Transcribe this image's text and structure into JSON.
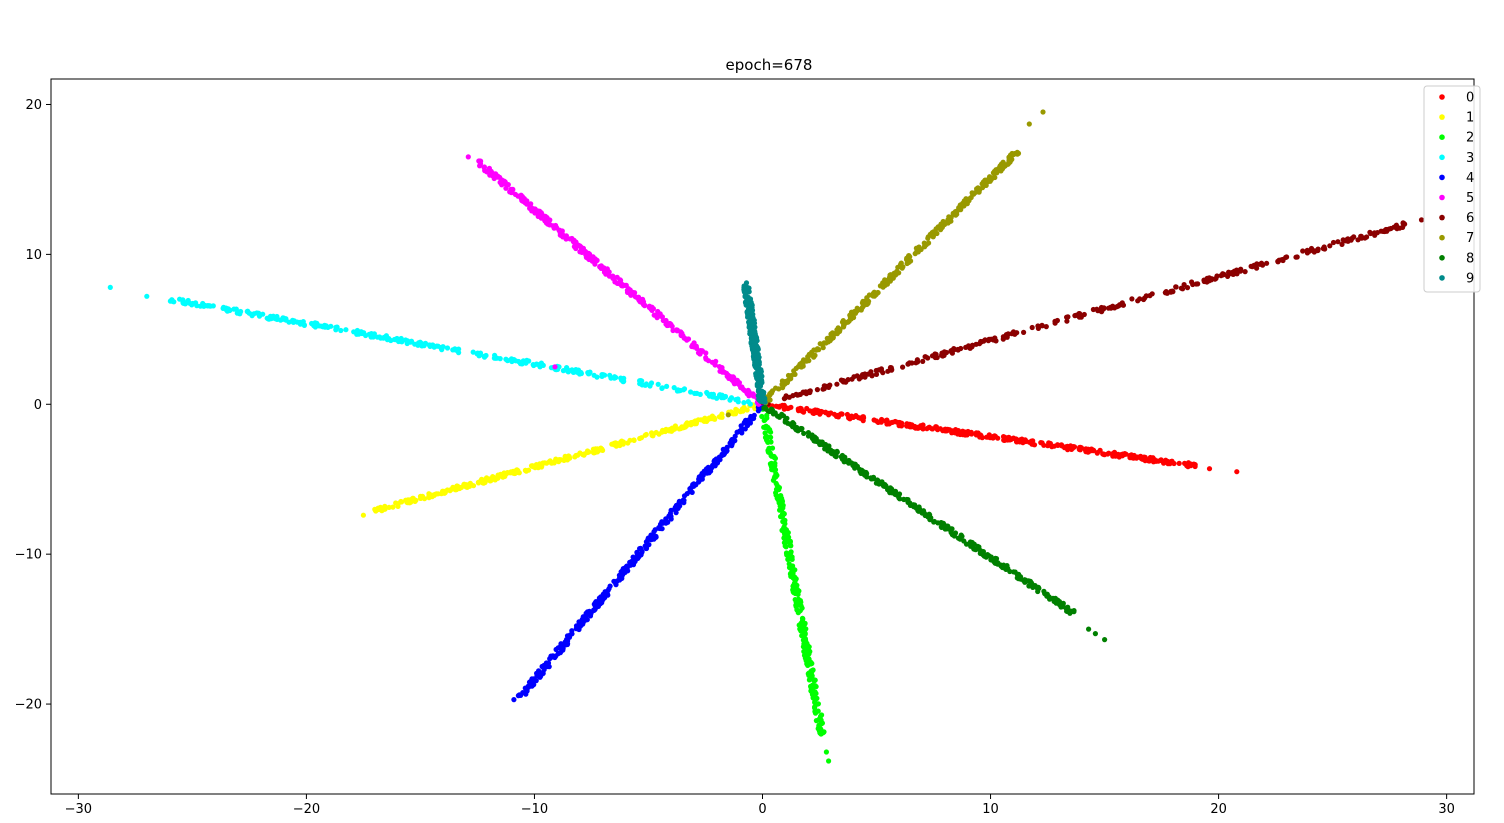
{
  "chart_data": {
    "type": "scatter",
    "title": "epoch=678",
    "xlabel": "",
    "ylabel": "",
    "xlim": [
      -31.2,
      31.2
    ],
    "ylim": [
      -26,
      21.7
    ],
    "xticks": [
      -30,
      -20,
      -10,
      0,
      10,
      20,
      30
    ],
    "xtick_labels": [
      "−30",
      "−20",
      "−10",
      "0",
      "10",
      "20",
      "30"
    ],
    "yticks": [
      -20,
      -10,
      0,
      10,
      20
    ],
    "ytick_labels": [
      "−20",
      "−10",
      "0",
      "10",
      "20"
    ],
    "grid": false,
    "legend_position": "top-right",
    "series": [
      {
        "name": "0",
        "color": "#ff0000",
        "end": [
          19.0,
          -4.1
        ],
        "tip_points": [
          [
            20.8,
            -4.5
          ],
          [
            19.6,
            -4.3
          ],
          [
            18.8,
            -4.0
          ]
        ]
      },
      {
        "name": "1",
        "color": "#ffff00",
        "end": [
          -17.0,
          -7.1
        ],
        "tip_points": [
          [
            -17.5,
            -7.4
          ]
        ]
      },
      {
        "name": "2",
        "color": "#00ff00",
        "end": [
          2.6,
          -22.0
        ],
        "tip_points": [
          [
            2.9,
            -23.8
          ],
          [
            2.8,
            -23.2
          ]
        ]
      },
      {
        "name": "3",
        "color": "#00ffff",
        "end": [
          -26.0,
          7.0
        ],
        "tip_points": [
          [
            -28.6,
            7.8
          ],
          [
            -27.0,
            7.2
          ]
        ]
      },
      {
        "name": "4",
        "color": "#0000ff",
        "end": [
          -10.6,
          -19.5
        ],
        "tip_points": [
          [
            -10.9,
            -19.7
          ]
        ]
      },
      {
        "name": "5",
        "color": "#ff00ff",
        "end": [
          -12.5,
          16.2
        ],
        "tip_points": [
          [
            -12.9,
            16.5
          ],
          [
            -9.1,
            2.5
          ]
        ]
      },
      {
        "name": "6",
        "color": "#8b0000",
        "end": [
          28.2,
          12.0
        ],
        "tip_points": [
          [
            28.9,
            12.3
          ]
        ]
      },
      {
        "name": "7",
        "color": "#999900",
        "end": [
          11.2,
          16.9
        ],
        "tip_points": [
          [
            12.3,
            19.5
          ],
          [
            11.7,
            18.7
          ],
          [
            -1.5,
            -0.7
          ]
        ]
      },
      {
        "name": "8",
        "color": "#008000",
        "end": [
          13.7,
          -14.0
        ],
        "tip_points": [
          [
            15.0,
            -15.7
          ],
          [
            14.6,
            -15.3
          ],
          [
            14.3,
            -15.0
          ]
        ]
      },
      {
        "name": "9",
        "color": "#008b8b",
        "end": [
          -0.7,
          7.9
        ],
        "tip_points": [
          [
            -0.7,
            8.1
          ]
        ]
      }
    ]
  }
}
